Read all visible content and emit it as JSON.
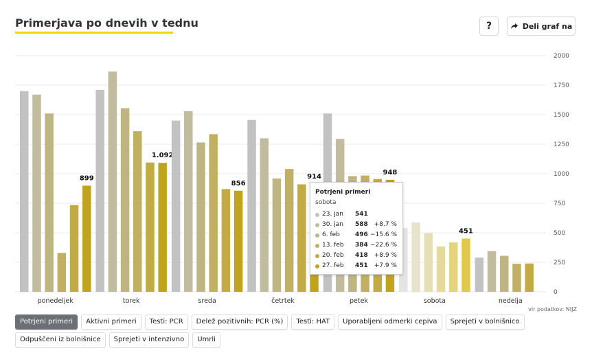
{
  "header": {
    "title": "Primerjava po dnevih v tednu",
    "help_label": "?",
    "share_label": "Deli graf na"
  },
  "source": "vir podatkov: NIJZ",
  "buttons": [
    {
      "label": "Potrjeni primeri",
      "active": true
    },
    {
      "label": "Aktivni primeri",
      "active": false
    },
    {
      "label": "Testi: PCR",
      "active": false
    },
    {
      "label": "Delež pozitivnih: PCR (%)",
      "active": false
    },
    {
      "label": "Testi: HAT",
      "active": false
    },
    {
      "label": "Uporabljeni odmerki cepiva",
      "active": false
    },
    {
      "label": "Sprejeti v bolnišnico",
      "active": false
    },
    {
      "label": "Odpuščeni iz bolnišnice",
      "active": false
    },
    {
      "label": "Sprejeti v intenzivno",
      "active": false
    },
    {
      "label": "Umrli",
      "active": false
    }
  ],
  "tooltip": {
    "title": "Potrjeni primeri",
    "day": "sobota",
    "rows": [
      {
        "date": "23. jan",
        "value": "541",
        "change": ""
      },
      {
        "date": "30. jan",
        "value": "588",
        "change": "+8.7 %"
      },
      {
        "date": "6. feb",
        "value": "496",
        "change": "−15.6 %"
      },
      {
        "date": "13. feb",
        "value": "384",
        "change": "−22.6 %"
      },
      {
        "date": "20. feb",
        "value": "418",
        "change": "+8.9 %"
      },
      {
        "date": "27. feb",
        "value": "451",
        "change": "+7.9 %"
      }
    ]
  },
  "colors": {
    "series": [
      "#c2c2c2",
      "#c2bc9e",
      "#bfb582",
      "#c1b064",
      "#c2aa44",
      "#c1a41e"
    ],
    "highlight_series": [
      "#e4e4e4",
      "#e7e3cc",
      "#e6dfb5",
      "#e6da9a",
      "#e5d47c",
      "#e1c74a"
    ],
    "grid": "#e8e8e8"
  },
  "chart_data": {
    "type": "bar",
    "categories": [
      "ponedeljek",
      "torek",
      "sreda",
      "četrtek",
      "petek",
      "sobota",
      "nedelja"
    ],
    "series": [
      {
        "name": "23. jan",
        "values": [
          1700,
          1710,
          1450,
          1455,
          1510,
          541,
          290
        ]
      },
      {
        "name": "30. jan",
        "values": [
          1670,
          1865,
          1530,
          1300,
          1295,
          588,
          345
        ]
      },
      {
        "name": "6. feb",
        "values": [
          1510,
          1555,
          1265,
          960,
          980,
          496,
          305
        ]
      },
      {
        "name": "13. feb",
        "values": [
          330,
          1360,
          1335,
          1040,
          985,
          384,
          238
        ]
      },
      {
        "name": "20. feb",
        "values": [
          735,
          1095,
          870,
          910,
          955,
          418,
          240
        ]
      },
      {
        "name": "27. feb",
        "values": [
          899,
          1092,
          856,
          914,
          948,
          451,
          null
        ]
      }
    ],
    "value_labels": [
      "899",
      "1.092",
      "856",
      "914",
      "948",
      "451",
      ""
    ],
    "highlighted_category": "sobota",
    "y_ticks": [
      "0",
      "250",
      "500",
      "750",
      "1000",
      "1250",
      "1500",
      "1750",
      "2000"
    ],
    "ylim": [
      0,
      2000
    ],
    "grid": true,
    "title": "Primerjava po dnevih v tednu",
    "xlabel": "",
    "ylabel": ""
  }
}
